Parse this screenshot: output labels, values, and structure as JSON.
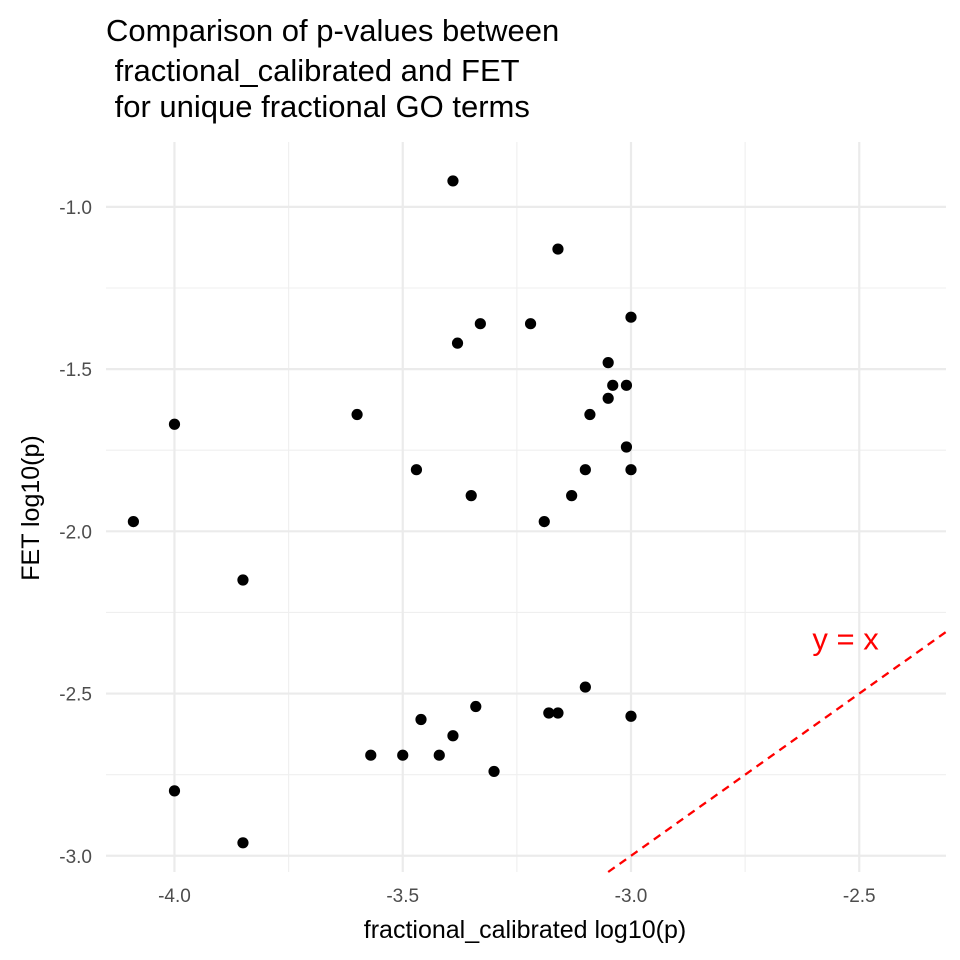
{
  "chart_data": {
    "type": "scatter",
    "title_lines": [
      "Comparison of p-values between",
      " fractional_calibrated and FET",
      " for unique fractional GO terms"
    ],
    "xlabel": "fractional_calibrated log10(p)",
    "ylabel": "FET log10(p)",
    "xlim": [
      -4.15,
      -2.31
    ],
    "ylim": [
      -3.05,
      -0.8
    ],
    "x_ticks": [
      -4.0,
      -3.5,
      -3.0,
      -2.5
    ],
    "x_tick_labels": [
      "-4.0",
      "-3.5",
      "-3.0",
      "-2.5"
    ],
    "y_ticks": [
      -1.0,
      -1.5,
      -2.0,
      -2.5,
      -3.0
    ],
    "y_tick_labels": [
      "-1.0",
      "-1.5",
      "-2.0",
      "-2.5",
      "-3.0"
    ],
    "grid": true,
    "point_color": "#000000",
    "reference_line": {
      "label": "y = x",
      "color": "#ff0000",
      "style": "dashed"
    },
    "annotation": {
      "text": "y = x",
      "x": -2.53,
      "y": -2.33,
      "color": "#ff0000"
    },
    "points": [
      {
        "x": -3.39,
        "y": -0.92
      },
      {
        "x": -3.16,
        "y": -1.13
      },
      {
        "x": -3.0,
        "y": -1.34
      },
      {
        "x": -3.33,
        "y": -1.36
      },
      {
        "x": -3.22,
        "y": -1.36
      },
      {
        "x": -3.38,
        "y": -1.42
      },
      {
        "x": -3.05,
        "y": -1.48
      },
      {
        "x": -3.04,
        "y": -1.55
      },
      {
        "x": -3.01,
        "y": -1.55
      },
      {
        "x": -3.05,
        "y": -1.59
      },
      {
        "x": -3.6,
        "y": -1.64
      },
      {
        "x": -3.09,
        "y": -1.64
      },
      {
        "x": -4.0,
        "y": -1.67
      },
      {
        "x": -3.01,
        "y": -1.74
      },
      {
        "x": -3.47,
        "y": -1.81
      },
      {
        "x": -3.1,
        "y": -1.81
      },
      {
        "x": -3.0,
        "y": -1.81
      },
      {
        "x": -3.35,
        "y": -1.89
      },
      {
        "x": -3.13,
        "y": -1.89
      },
      {
        "x": -4.09,
        "y": -1.97
      },
      {
        "x": -3.19,
        "y": -1.97
      },
      {
        "x": -3.85,
        "y": -2.15
      },
      {
        "x": -3.1,
        "y": -2.48
      },
      {
        "x": -3.34,
        "y": -2.54
      },
      {
        "x": -3.18,
        "y": -2.56
      },
      {
        "x": -3.16,
        "y": -2.56
      },
      {
        "x": -3.0,
        "y": -2.57
      },
      {
        "x": -3.46,
        "y": -2.58
      },
      {
        "x": -3.39,
        "y": -2.63
      },
      {
        "x": -3.57,
        "y": -2.69
      },
      {
        "x": -3.5,
        "y": -2.69
      },
      {
        "x": -3.42,
        "y": -2.69
      },
      {
        "x": -3.3,
        "y": -2.74
      },
      {
        "x": -4.0,
        "y": -2.8
      },
      {
        "x": -3.85,
        "y": -2.96
      }
    ]
  }
}
